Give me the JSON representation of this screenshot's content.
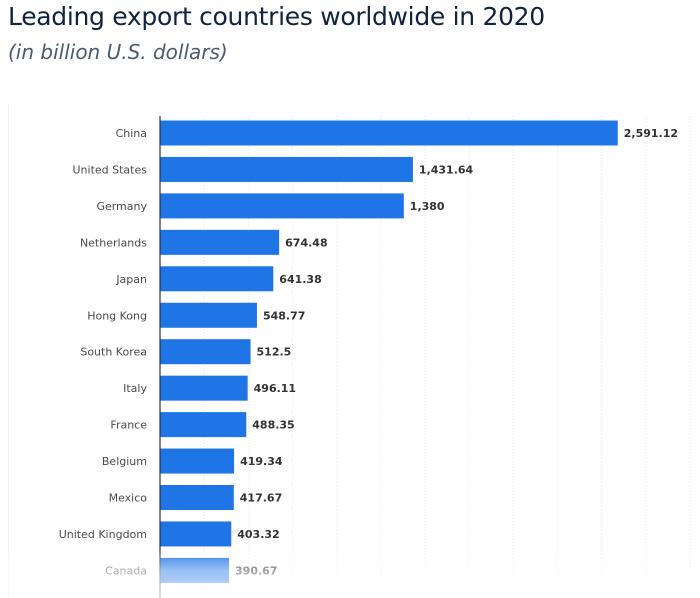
{
  "chart_data": {
    "type": "bar",
    "orientation": "horizontal",
    "title": "Leading export countries worldwide in 2020",
    "subtitle": "(in billion U.S. dollars)",
    "xlabel": "",
    "ylabel": "",
    "xlim": [
      0,
      3000
    ],
    "grid": true,
    "grid_step": 250,
    "bar_color": "#1f74e6",
    "categories": [
      "China",
      "United States",
      "Germany",
      "Netherlands",
      "Japan",
      "Hong Kong",
      "South Korea",
      "Italy",
      "France",
      "Belgium",
      "Mexico",
      "United Kingdom",
      "Canada"
    ],
    "values": [
      2591.12,
      1431.64,
      1380,
      674.48,
      641.38,
      548.77,
      512.5,
      496.11,
      488.35,
      419.34,
      417.67,
      403.32,
      390.67
    ],
    "value_labels": [
      "2,591.12",
      "1,431.64",
      "1,380",
      "674.48",
      "641.38",
      "548.77",
      "512.5",
      "496.11",
      "488.35",
      "419.34",
      "417.67",
      "403.32",
      "390.67"
    ]
  }
}
